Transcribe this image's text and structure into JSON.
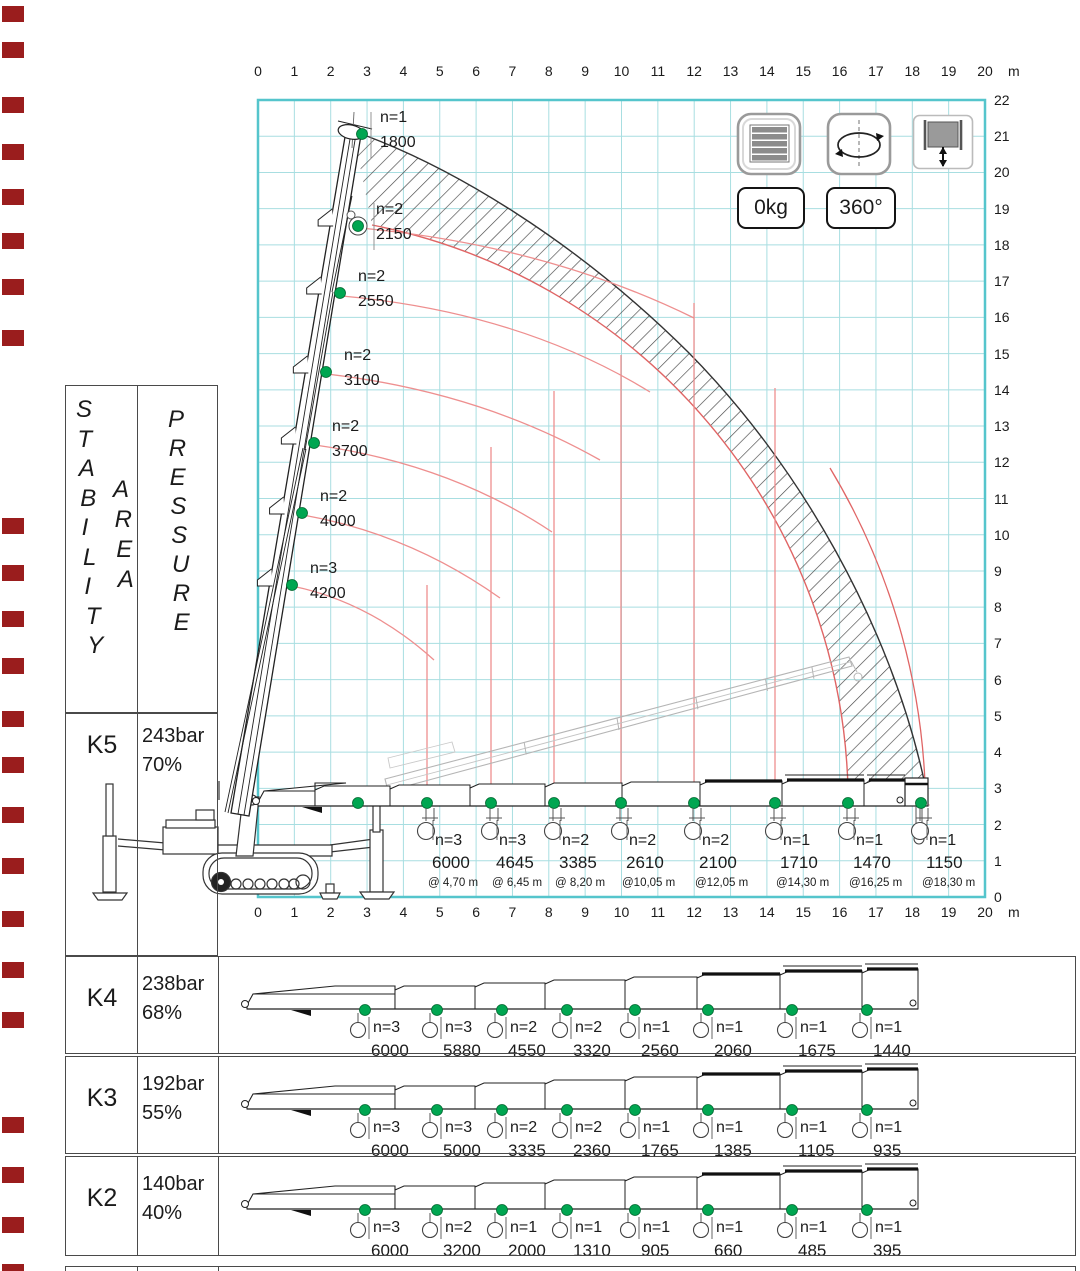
{
  "axis": {
    "x_ticks": [
      "0",
      "1",
      "2",
      "3",
      "4",
      "5",
      "6",
      "7",
      "8",
      "9",
      "10",
      "11",
      "12",
      "13",
      "14",
      "15",
      "16",
      "17",
      "18",
      "19",
      "20"
    ],
    "x_unit": "m",
    "y_ticks": [
      "22",
      "21",
      "20",
      "19",
      "18",
      "17",
      "16",
      "15",
      "14",
      "13",
      "12",
      "11",
      "10",
      "9",
      "8",
      "7",
      "6",
      "5",
      "4",
      "3",
      "2",
      "1",
      "0"
    ]
  },
  "legend": {
    "counterweight_icon": "counterweight-icon",
    "slew_icon": "slew-rotation-icon",
    "winch_icon": "winch-hoist-icon",
    "counterweight_value": "0kg",
    "slew_range": "360°"
  },
  "stability_table": {
    "col_stability": "STABILITY",
    "col_area": "AREA",
    "col_pressure": "PRESSURE",
    "k5": {
      "label": "K5",
      "pressure": "243bar",
      "percent": "70%"
    }
  },
  "luffing_points": [
    {
      "n": "n=1",
      "load": "1800"
    },
    {
      "n": "n=2",
      "load": "2150"
    },
    {
      "n": "n=2",
      "load": "2550"
    },
    {
      "n": "n=2",
      "load": "3100"
    },
    {
      "n": "n=2",
      "load": "3700"
    },
    {
      "n": "n=2",
      "load": "4000"
    },
    {
      "n": "n=3",
      "load": "4200"
    }
  ],
  "horizontal_points": [
    {
      "n": "n=3",
      "load": "6000",
      "radius": "@ 4,70 m"
    },
    {
      "n": "n=3",
      "load": "4645",
      "radius": "@ 6,45 m"
    },
    {
      "n": "n=2",
      "load": "3385",
      "radius": "@ 8,20 m"
    },
    {
      "n": "n=2",
      "load": "2610",
      "radius": "@10,05 m"
    },
    {
      "n": "n=2",
      "load": "2100",
      "radius": "@12,05 m"
    },
    {
      "n": "n=1",
      "load": "1710",
      "radius": "@14,30 m"
    },
    {
      "n": "n=1",
      "load": "1470",
      "radius": "@16,25 m"
    },
    {
      "n": "n=1",
      "load": "1150",
      "radius": "@18,30 m"
    }
  ],
  "outrigger_rows": [
    {
      "label": "K4",
      "pressure": "238bar",
      "percent": "68%",
      "capacities": [
        {
          "n": "n=3",
          "load": "6000"
        },
        {
          "n": "n=3",
          "load": "5880"
        },
        {
          "n": "n=2",
          "load": "4550"
        },
        {
          "n": "n=2",
          "load": "3320"
        },
        {
          "n": "n=1",
          "load": "2560"
        },
        {
          "n": "n=1",
          "load": "2060"
        },
        {
          "n": "n=1",
          "load": "1675"
        },
        {
          "n": "n=1",
          "load": "1440"
        }
      ]
    },
    {
      "label": "K3",
      "pressure": "192bar",
      "percent": "55%",
      "capacities": [
        {
          "n": "n=3",
          "load": "6000"
        },
        {
          "n": "n=3",
          "load": "5000"
        },
        {
          "n": "n=2",
          "load": "3335"
        },
        {
          "n": "n=2",
          "load": "2360"
        },
        {
          "n": "n=1",
          "load": "1765"
        },
        {
          "n": "n=1",
          "load": "1385"
        },
        {
          "n": "n=1",
          "load": "1105"
        },
        {
          "n": "n=1",
          "load": "935"
        }
      ]
    },
    {
      "label": "K2",
      "pressure": "140bar",
      "percent": "40%",
      "capacities": [
        {
          "n": "n=3",
          "load": "6000"
        },
        {
          "n": "n=2",
          "load": "3200"
        },
        {
          "n": "n=1",
          "load": "2000"
        },
        {
          "n": "n=1",
          "load": "1310"
        },
        {
          "n": "n=1",
          "load": "905"
        },
        {
          "n": "n=1",
          "load": "660"
        },
        {
          "n": "n=1",
          "load": "485"
        },
        {
          "n": "n=1",
          "load": "395"
        }
      ]
    }
  ],
  "colors": {
    "grid": "#a8dee1",
    "grid_border": "#55c5cc",
    "green_dot": "#00a651",
    "load_curve": "#ee8f8f",
    "envelope_red": "#e06565",
    "hatch": "#454545",
    "edge_mark": "#9a1d1d"
  }
}
